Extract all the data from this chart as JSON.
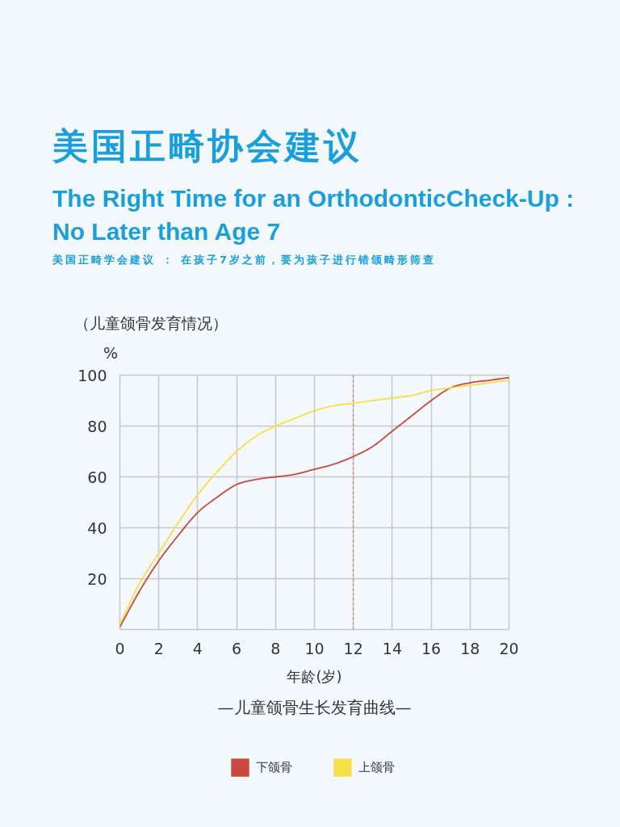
{
  "chart_data": {
    "type": "line",
    "title": "美国正畸协会建议",
    "subtitle": "The Right Time for an OrthodonticCheck-Up : No Later than Age 7",
    "annotations": [
      "美国正畸学会建议 ： 在孩子7岁之前，要为孩子进行错颌畸形筛查",
      "（儿童颌骨发育情况）",
      "—儿童颌骨生长发育曲线—"
    ],
    "xlabel": "年龄(岁)",
    "ylabel": "%",
    "x": [
      0,
      1,
      2,
      3,
      4,
      5,
      6,
      7,
      8,
      9,
      10,
      11,
      12,
      13,
      14,
      15,
      16,
      17,
      18,
      19,
      20
    ],
    "series": [
      {
        "name": "下颌骨",
        "color": "#c9483f",
        "values": [
          1,
          15,
          27,
          37,
          46,
          52,
          57,
          59,
          60,
          61,
          63,
          65,
          68,
          72,
          78,
          84,
          90,
          95,
          97,
          98,
          99
        ]
      },
      {
        "name": "上颌骨",
        "color": "#f8de4a",
        "values": [
          2,
          18,
          30,
          42,
          53,
          62,
          70,
          76,
          80,
          83,
          86,
          88,
          89,
          90,
          91,
          92,
          94,
          95,
          96,
          97,
          98
        ]
      }
    ],
    "xlim": [
      0,
      20
    ],
    "ylim": [
      0,
      100
    ],
    "xticks": [
      0,
      2,
      4,
      6,
      8,
      10,
      12,
      14,
      16,
      18,
      20
    ],
    "yticks": [
      20,
      40,
      60,
      80,
      100
    ],
    "ref_lines": [
      {
        "axis": "x",
        "value": 12,
        "color": "#e06666",
        "line_style": "dotted"
      }
    ],
    "grid": true,
    "legend": "bottom"
  }
}
